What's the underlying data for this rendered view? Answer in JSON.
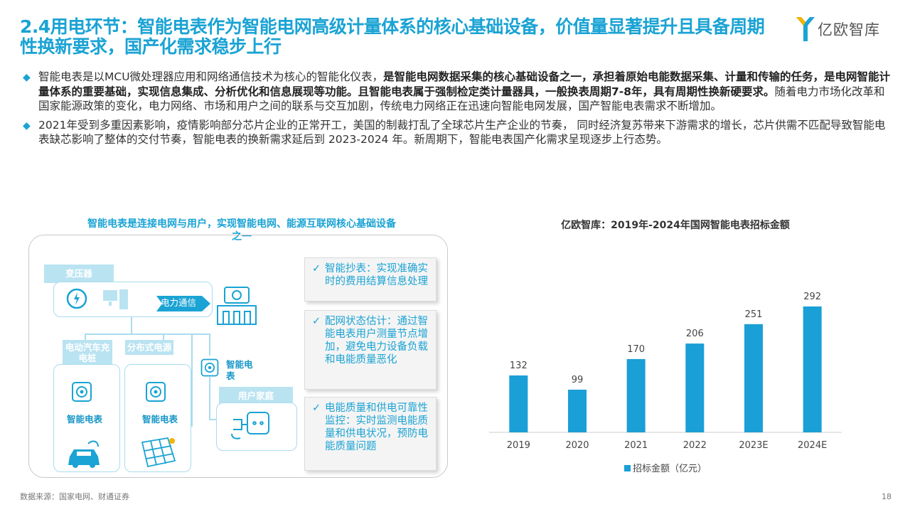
{
  "header": {
    "title": "2.4用电环节：智能电表作为智能电网高级计量体系的核心基础设备，价值量显著提升且具备周期性换新要求，国产化需求稳步上行",
    "logo_text": "亿欧智库"
  },
  "bullets": [
    [
      {
        "t": "智能电表是以MCU微处理器应用和网络通信技术为核心的智能化仪表，",
        "b": false
      },
      {
        "t": "是智能电网数据采集的核心基础设备之一，承担着原始电能数据采集、计量和传输的任务，是电网智能计量体系的重要基础，实现信息集成、分析优化和信息展现等功能。且智能电表属于强制检定类计量器具，一般换表周期7-8年，具有周期性换新硬要求。",
        "b": true
      },
      {
        "t": "随着电力市场化改革和国家能源政策的变化，电力网络、市场和用户之间的联系与交互加剧，传统电力网络正在迅速向智能电网发展，国产智能电表需求不断增加。",
        "b": false
      }
    ],
    [
      {
        "t": "2021年受到多重因素影响，疫情影响部分芯片企业的正常开工，美国的制裁打乱了全球芯片生产企业的节奏， 同时经济复苏带来下游需求的增长，芯片供需不匹配导致智能电表缺芯影响了整体的交付节奏，智能电表的换新需求延后到 2023-2024 年。新周期下，智能电表国产化需求呈现逐步上行态势。",
        "b": false
      }
    ]
  ],
  "diagram": {
    "title": "智能电表是连接电网与用户，实现智能电网、能源互联网核心基础设备之一",
    "labels": {
      "transformer": "变压器",
      "comm": "电力通信",
      "ev": "电动汽车充电桩",
      "distributed": "分布式电源",
      "meter_mid": "智能电表",
      "home": "用户家庭",
      "meter_ev": "智能电表",
      "meter_dist": "智能电表"
    },
    "notes": [
      "智能抄表：实现准确实时的费用结算信息处理",
      "配网状态估计：通过智能电表用户测量节点增加，避免电力设备负载和电能质量恶化",
      "电能质量和供电可靠性监控：实时监测电能质量和供电状况，预防电能质量问题"
    ],
    "check_glyph": "✓"
  },
  "chart_data": {
    "type": "bar",
    "title": "亿欧智库：2019年-2024年国网智能电表招标金额",
    "categories": [
      "2019",
      "2020",
      "2021",
      "2022",
      "2023E",
      "2024E"
    ],
    "series": [
      {
        "name": "招标金额（亿元）",
        "values": [
          132,
          99,
          170,
          206,
          251,
          292
        ]
      }
    ],
    "legend_position": "bottom",
    "grid": false,
    "ylim": [
      0,
      320
    ],
    "colors": {
      "bar": "#1a9fd6",
      "axis": "#cccccc"
    }
  },
  "footer": {
    "source": "数据来源：国家电网、财通证券",
    "page": "18"
  },
  "colors": {
    "accent": "#1aa3d4",
    "label_bg": "#b9e3f1"
  }
}
